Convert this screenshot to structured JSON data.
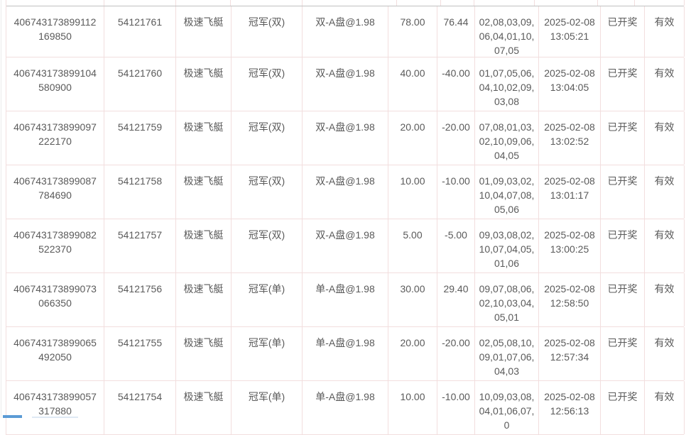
{
  "colors": {
    "c-pink": "#f2dede",
    "c-headerline": "#c0c0c0",
    "c-text": "#5a5a5a",
    "c-blue": "#5b9bd5",
    "c-bluefaint": "#dfe9f4",
    "c-hairline": "#ececec"
  },
  "table": {
    "rows": [
      {
        "order_no": "406743173899112169850",
        "bet_id": "54121761",
        "lottery": "极速飞艇",
        "play_type": "冠军(双)",
        "bet_content": "双-A盘@1.98",
        "amount": "78.00",
        "win_loss": "76.44",
        "draw_numbers": "02,08,03,09,06,04,01,10,07,05",
        "draw_time": "2025-02-08 13:05:21",
        "draw_status": "已开奖",
        "valid_status": "有效"
      },
      {
        "order_no": "406743173899104580900",
        "bet_id": "54121760",
        "lottery": "极速飞艇",
        "play_type": "冠军(双)",
        "bet_content": "双-A盘@1.98",
        "amount": "40.00",
        "win_loss": "-40.00",
        "draw_numbers": "01,07,05,06,04,10,02,09,03,08",
        "draw_time": "2025-02-08 13:04:05",
        "draw_status": "已开奖",
        "valid_status": "有效"
      },
      {
        "order_no": "406743173899097222170",
        "bet_id": "54121759",
        "lottery": "极速飞艇",
        "play_type": "冠军(双)",
        "bet_content": "双-A盘@1.98",
        "amount": "20.00",
        "win_loss": "-20.00",
        "draw_numbers": "07,08,01,03,02,10,09,06,04,05",
        "draw_time": "2025-02-08 13:02:52",
        "draw_status": "已开奖",
        "valid_status": "有效"
      },
      {
        "order_no": "406743173899087784690",
        "bet_id": "54121758",
        "lottery": "极速飞艇",
        "play_type": "冠军(双)",
        "bet_content": "双-A盘@1.98",
        "amount": "10.00",
        "win_loss": "-10.00",
        "draw_numbers": "01,09,03,02,10,04,07,08,05,06",
        "draw_time": "2025-02-08 13:01:17",
        "draw_status": "已开奖",
        "valid_status": "有效"
      },
      {
        "order_no": "406743173899082522370",
        "bet_id": "54121757",
        "lottery": "极速飞艇",
        "play_type": "冠军(双)",
        "bet_content": "双-A盘@1.98",
        "amount": "5.00",
        "win_loss": "-5.00",
        "draw_numbers": "09,03,08,02,10,07,04,05,01,06",
        "draw_time": "2025-02-08 13:00:25",
        "draw_status": "已开奖",
        "valid_status": "有效"
      },
      {
        "order_no": "406743173899073066350",
        "bet_id": "54121756",
        "lottery": "极速飞艇",
        "play_type": "冠军(单)",
        "bet_content": "单-A盘@1.98",
        "amount": "30.00",
        "win_loss": "29.40",
        "draw_numbers": "09,07,08,06,02,10,03,04,05,01",
        "draw_time": "2025-02-08 12:58:50",
        "draw_status": "已开奖",
        "valid_status": "有效"
      },
      {
        "order_no": "406743173899065492050",
        "bet_id": "54121755",
        "lottery": "极速飞艇",
        "play_type": "冠军(单)",
        "bet_content": "单-A盘@1.98",
        "amount": "20.00",
        "win_loss": "-20.00",
        "draw_numbers": "02,05,08,10,09,01,07,06,04,03",
        "draw_time": "2025-02-08 12:57:34",
        "draw_status": "已开奖",
        "valid_status": "有效"
      },
      {
        "order_no": "406743173899057317880",
        "bet_id": "54121754",
        "lottery": "极速飞艇",
        "play_type": "冠军(单)",
        "bet_content": "单-A盘@1.98",
        "amount": "10.00",
        "win_loss": "-10.00",
        "draw_numbers": "10,09,03,08,04,01,06,07,0",
        "draw_time": "2025-02-08 12:56:13",
        "draw_status": "已开奖",
        "valid_status": "有效"
      }
    ]
  }
}
